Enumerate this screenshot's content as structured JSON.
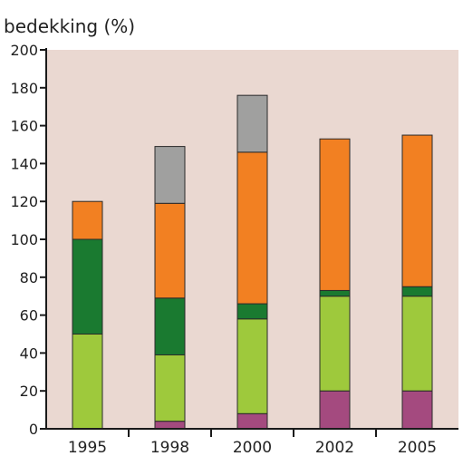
{
  "chart_data": {
    "type": "bar",
    "stacked": true,
    "title": "",
    "xlabel": "",
    "ylabel": "bedekking (%)",
    "categories": [
      "1995",
      "1998",
      "2000",
      "2002",
      "2005"
    ],
    "ylim": [
      0,
      200
    ],
    "yticks": [
      0,
      20,
      40,
      60,
      80,
      100,
      120,
      140,
      160,
      180,
      200
    ],
    "grid": false,
    "legend": "none",
    "colors": {
      "background": "#ead8d1",
      "axis": "#1a1a1a"
    },
    "series": [
      {
        "color": "#a44a7f",
        "values": [
          0,
          4,
          8,
          20,
          20
        ]
      },
      {
        "color": "#9ec93c",
        "values": [
          50,
          35,
          50,
          50,
          50
        ]
      },
      {
        "color": "#1a7a30",
        "values": [
          50,
          30,
          8,
          3,
          5
        ]
      },
      {
        "color": "#f28022",
        "values": [
          20,
          50,
          80,
          80,
          80
        ]
      },
      {
        "color": "#a0a09f",
        "values": [
          0,
          30,
          30,
          0,
          0
        ]
      }
    ]
  }
}
